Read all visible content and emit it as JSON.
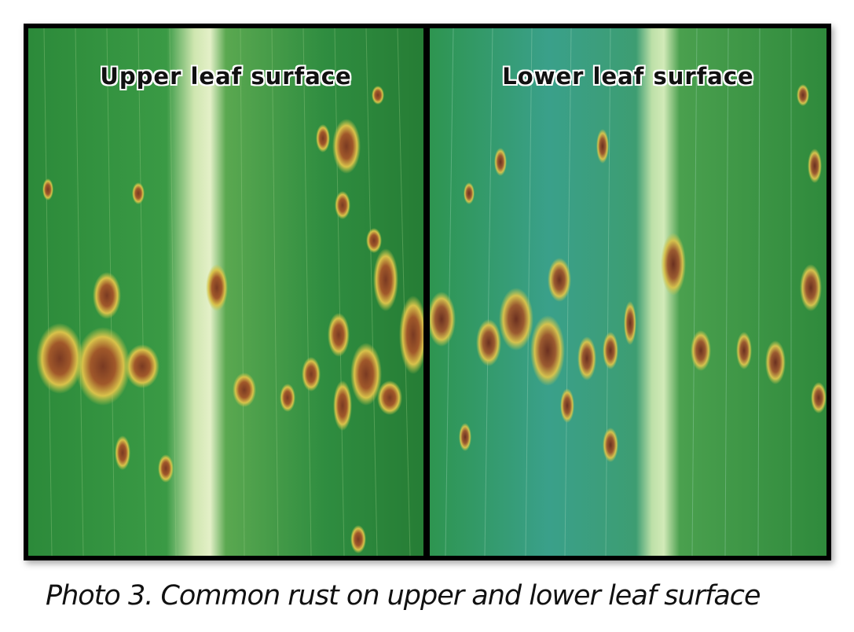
{
  "photo": {
    "upper_label": "Upper leaf surface",
    "lower_label": "Lower leaf surface",
    "caption": "Photo 3. Common rust on upper and lower leaf surface"
  },
  "colors": {
    "leaf_green": "#2f8a3e",
    "leaf_blue_green": "#3a9a78",
    "midrib": "#cfe6b0",
    "lesion_halo": "#d8c24a",
    "lesion_core": "#7a3a22",
    "border": "#000000"
  }
}
